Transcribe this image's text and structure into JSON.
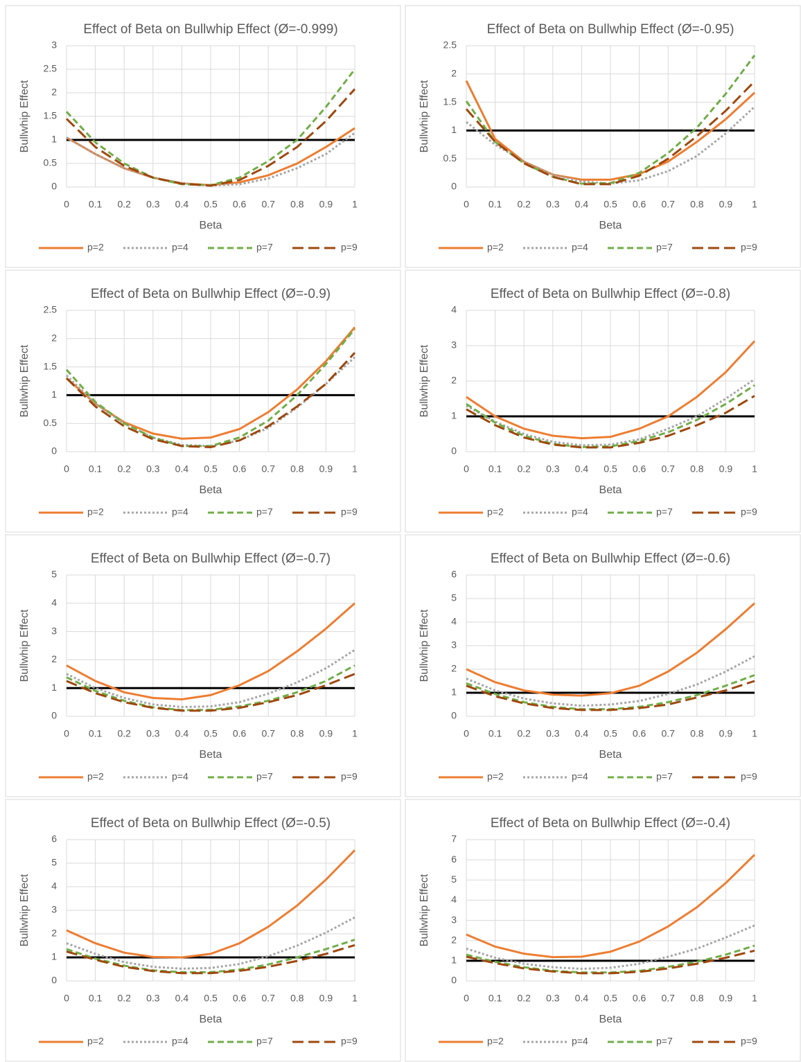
{
  "chart_data": [
    {
      "type": "line",
      "title": "Effect of Beta on Bullwhip Effect (Ø=-0.999)",
      "x_label": "Beta",
      "y_label": "Bullwhip Effect",
      "x": [
        0,
        0.1,
        0.2,
        0.3,
        0.4,
        0.5,
        0.6,
        0.7,
        0.8,
        0.9,
        1
      ],
      "xlim": [
        0,
        1
      ],
      "xticks": [
        0,
        0.1,
        0.2,
        0.3,
        0.4,
        0.5,
        0.6,
        0.7,
        0.8,
        0.9,
        1
      ],
      "ylim": [
        0,
        3
      ],
      "yticks": [
        0,
        0.5,
        1,
        1.5,
        2,
        2.5,
        3
      ],
      "grid": true,
      "legend": "bottom",
      "reference_line": 1,
      "reference_color": "#000000",
      "series": [
        {
          "name": "p=2",
          "color": "#ed7d31",
          "dash": "solid",
          "values": [
            1.05,
            0.7,
            0.4,
            0.2,
            0.08,
            0.04,
            0.1,
            0.25,
            0.5,
            0.85,
            1.25
          ]
        },
        {
          "name": "p=4",
          "color": "#a5a5a5",
          "dash": "dot",
          "values": [
            1.05,
            0.7,
            0.4,
            0.2,
            0.08,
            0.03,
            0.06,
            0.18,
            0.4,
            0.7,
            1.15
          ]
        },
        {
          "name": "p=7",
          "color": "#70ad47",
          "dash": "dash",
          "values": [
            1.6,
            0.95,
            0.5,
            0.2,
            0.06,
            0.04,
            0.2,
            0.55,
            1.0,
            1.7,
            2.5
          ]
        },
        {
          "name": "p=9",
          "color": "#9e480e",
          "dash": "longdash",
          "values": [
            1.45,
            0.85,
            0.45,
            0.2,
            0.07,
            0.03,
            0.15,
            0.45,
            0.85,
            1.4,
            2.08
          ]
        }
      ]
    },
    {
      "type": "line",
      "title": "Effect of Beta on Bullwhip Effect (Ø=-0.95)",
      "x_label": "Beta",
      "y_label": "Bullwhip Effect",
      "x": [
        0,
        0.1,
        0.2,
        0.3,
        0.4,
        0.5,
        0.6,
        0.7,
        0.8,
        0.9,
        1
      ],
      "xlim": [
        0,
        1
      ],
      "xticks": [
        0,
        0.1,
        0.2,
        0.3,
        0.4,
        0.5,
        0.6,
        0.7,
        0.8,
        0.9,
        1
      ],
      "ylim": [
        0,
        2.5
      ],
      "yticks": [
        0,
        0.5,
        1,
        1.5,
        2,
        2.5
      ],
      "grid": true,
      "legend": "bottom",
      "reference_line": 1,
      "reference_color": "#000000",
      "series": [
        {
          "name": "p=2",
          "color": "#ed7d31",
          "dash": "solid",
          "values": [
            1.88,
            0.85,
            0.45,
            0.22,
            0.13,
            0.13,
            0.23,
            0.45,
            0.8,
            1.2,
            1.67
          ]
        },
        {
          "name": "p=4",
          "color": "#a5a5a5",
          "dash": "dot",
          "values": [
            1.15,
            0.75,
            0.45,
            0.22,
            0.1,
            0.06,
            0.12,
            0.28,
            0.55,
            0.95,
            1.42
          ]
        },
        {
          "name": "p=7",
          "color": "#70ad47",
          "dash": "dash",
          "values": [
            1.52,
            0.8,
            0.42,
            0.18,
            0.06,
            0.07,
            0.25,
            0.6,
            1.05,
            1.65,
            2.33
          ]
        },
        {
          "name": "p=9",
          "color": "#9e480e",
          "dash": "longdash",
          "values": [
            1.38,
            0.8,
            0.42,
            0.18,
            0.05,
            0.05,
            0.2,
            0.5,
            0.9,
            1.35,
            1.87
          ]
        }
      ]
    },
    {
      "type": "line",
      "title": "Effect of Beta on Bullwhip Effect (Ø=-0.9)",
      "x_label": "Beta",
      "y_label": "Bullwhip Effect",
      "x": [
        0,
        0.1,
        0.2,
        0.3,
        0.4,
        0.5,
        0.6,
        0.7,
        0.8,
        0.9,
        1
      ],
      "xlim": [
        0,
        1
      ],
      "xticks": [
        0,
        0.1,
        0.2,
        0.3,
        0.4,
        0.5,
        0.6,
        0.7,
        0.8,
        0.9,
        1
      ],
      "ylim": [
        0,
        2.5
      ],
      "yticks": [
        0,
        0.5,
        1,
        1.5,
        2,
        2.5
      ],
      "grid": true,
      "legend": "bottom",
      "reference_line": 1,
      "reference_color": "#000000",
      "series": [
        {
          "name": "p=2",
          "color": "#ed7d31",
          "dash": "solid",
          "values": [
            1.3,
            0.85,
            0.52,
            0.32,
            0.23,
            0.25,
            0.4,
            0.7,
            1.1,
            1.6,
            2.2
          ]
        },
        {
          "name": "p=4",
          "color": "#a5a5a5",
          "dash": "dot",
          "values": [
            1.35,
            0.85,
            0.5,
            0.25,
            0.12,
            0.1,
            0.2,
            0.42,
            0.78,
            1.2,
            1.67
          ]
        },
        {
          "name": "p=7",
          "color": "#70ad47",
          "dash": "dash",
          "values": [
            1.45,
            0.88,
            0.5,
            0.25,
            0.1,
            0.1,
            0.25,
            0.55,
            1.0,
            1.55,
            2.17
          ]
        },
        {
          "name": "p=9",
          "color": "#9e480e",
          "dash": "longdash",
          "values": [
            1.3,
            0.8,
            0.45,
            0.22,
            0.1,
            0.08,
            0.2,
            0.45,
            0.8,
            1.2,
            1.75
          ]
        }
      ]
    },
    {
      "type": "line",
      "title": "Effect of Beta on Bullwhip Effect (Ø=-0.8)",
      "x_label": "Beta",
      "y_label": "Bullwhip Effect",
      "x": [
        0,
        0.1,
        0.2,
        0.3,
        0.4,
        0.5,
        0.6,
        0.7,
        0.8,
        0.9,
        1
      ],
      "xlim": [
        0,
        1
      ],
      "xticks": [
        0,
        0.1,
        0.2,
        0.3,
        0.4,
        0.5,
        0.6,
        0.7,
        0.8,
        0.9,
        1
      ],
      "ylim": [
        0,
        4
      ],
      "yticks": [
        0,
        1,
        2,
        3,
        4
      ],
      "grid": true,
      "legend": "bottom",
      "reference_line": 1,
      "reference_color": "#000000",
      "series": [
        {
          "name": "p=2",
          "color": "#ed7d31",
          "dash": "solid",
          "values": [
            1.55,
            1.0,
            0.65,
            0.45,
            0.38,
            0.42,
            0.65,
            1.0,
            1.55,
            2.25,
            3.13
          ]
        },
        {
          "name": "p=4",
          "color": "#a5a5a5",
          "dash": "dot",
          "values": [
            1.3,
            0.85,
            0.5,
            0.28,
            0.18,
            0.2,
            0.35,
            0.65,
            1.0,
            1.5,
            2.05
          ]
        },
        {
          "name": "p=7",
          "color": "#70ad47",
          "dash": "dash",
          "values": [
            1.35,
            0.82,
            0.45,
            0.22,
            0.13,
            0.15,
            0.3,
            0.55,
            0.9,
            1.35,
            1.88
          ]
        },
        {
          "name": "p=9",
          "color": "#9e480e",
          "dash": "longdash",
          "values": [
            1.2,
            0.75,
            0.4,
            0.2,
            0.12,
            0.12,
            0.25,
            0.45,
            0.75,
            1.1,
            1.58
          ]
        }
      ]
    },
    {
      "type": "line",
      "title": "Effect of Beta on Bullwhip Effect (Ø=-0.7)",
      "x_label": "Beta",
      "y_label": "Bullwhip Effect",
      "x": [
        0,
        0.1,
        0.2,
        0.3,
        0.4,
        0.5,
        0.6,
        0.7,
        0.8,
        0.9,
        1
      ],
      "xlim": [
        0,
        1
      ],
      "xticks": [
        0,
        0.1,
        0.2,
        0.3,
        0.4,
        0.5,
        0.6,
        0.7,
        0.8,
        0.9,
        1
      ],
      "ylim": [
        0,
        5
      ],
      "yticks": [
        0,
        1,
        2,
        3,
        4,
        5
      ],
      "grid": true,
      "legend": "bottom",
      "reference_line": 1,
      "reference_color": "#000000",
      "series": [
        {
          "name": "p=2",
          "color": "#ed7d31",
          "dash": "solid",
          "values": [
            1.8,
            1.25,
            0.85,
            0.65,
            0.6,
            0.75,
            1.1,
            1.6,
            2.3,
            3.1,
            4.0
          ]
        },
        {
          "name": "p=4",
          "color": "#a5a5a5",
          "dash": "dot",
          "values": [
            1.5,
            1.0,
            0.65,
            0.42,
            0.33,
            0.35,
            0.5,
            0.8,
            1.2,
            1.7,
            2.35
          ]
        },
        {
          "name": "p=7",
          "color": "#70ad47",
          "dash": "dash",
          "values": [
            1.38,
            0.9,
            0.55,
            0.32,
            0.22,
            0.23,
            0.35,
            0.55,
            0.85,
            1.25,
            1.8
          ]
        },
        {
          "name": "p=9",
          "color": "#9e480e",
          "dash": "longdash",
          "values": [
            1.25,
            0.82,
            0.5,
            0.3,
            0.2,
            0.2,
            0.3,
            0.5,
            0.75,
            1.1,
            1.5
          ]
        }
      ]
    },
    {
      "type": "line",
      "title": "Effect of Beta on Bullwhip Effect (Ø=-0.6)",
      "x_label": "Beta",
      "y_label": "Bullwhip Effect",
      "x": [
        0,
        0.1,
        0.2,
        0.3,
        0.4,
        0.5,
        0.6,
        0.7,
        0.8,
        0.9,
        1
      ],
      "xlim": [
        0,
        1
      ],
      "xticks": [
        0,
        0.1,
        0.2,
        0.3,
        0.4,
        0.5,
        0.6,
        0.7,
        0.8,
        0.9,
        1
      ],
      "ylim": [
        0,
        6
      ],
      "yticks": [
        0,
        1,
        2,
        3,
        4,
        5,
        6
      ],
      "grid": true,
      "legend": "bottom",
      "reference_line": 1,
      "reference_color": "#000000",
      "series": [
        {
          "name": "p=2",
          "color": "#ed7d31",
          "dash": "solid",
          "values": [
            2.0,
            1.45,
            1.1,
            0.92,
            0.88,
            0.98,
            1.3,
            1.9,
            2.7,
            3.7,
            4.8
          ]
        },
        {
          "name": "p=4",
          "color": "#a5a5a5",
          "dash": "dot",
          "values": [
            1.6,
            1.1,
            0.75,
            0.55,
            0.45,
            0.5,
            0.65,
            0.95,
            1.35,
            1.9,
            2.55
          ]
        },
        {
          "name": "p=7",
          "color": "#70ad47",
          "dash": "dash",
          "values": [
            1.4,
            0.95,
            0.6,
            0.4,
            0.3,
            0.3,
            0.4,
            0.6,
            0.9,
            1.3,
            1.75
          ]
        },
        {
          "name": "p=9",
          "color": "#9e480e",
          "dash": "longdash",
          "values": [
            1.3,
            0.85,
            0.55,
            0.35,
            0.27,
            0.27,
            0.35,
            0.5,
            0.8,
            1.1,
            1.5
          ]
        }
      ]
    },
    {
      "type": "line",
      "title": "Effect of Beta on Bullwhip Effect (Ø=-0.5)",
      "x_label": "Beta",
      "y_label": "Bullwhip Effect",
      "x": [
        0,
        0.1,
        0.2,
        0.3,
        0.4,
        0.5,
        0.6,
        0.7,
        0.8,
        0.9,
        1
      ],
      "xlim": [
        0,
        1
      ],
      "xticks": [
        0,
        0.1,
        0.2,
        0.3,
        0.4,
        0.5,
        0.6,
        0.7,
        0.8,
        0.9,
        1
      ],
      "ylim": [
        0,
        6
      ],
      "yticks": [
        0,
        1,
        2,
        3,
        4,
        5,
        6
      ],
      "grid": true,
      "legend": "bottom",
      "reference_line": 1,
      "reference_color": "#000000",
      "series": [
        {
          "name": "p=2",
          "color": "#ed7d31",
          "dash": "solid",
          "values": [
            2.15,
            1.6,
            1.2,
            1.02,
            1.0,
            1.15,
            1.6,
            2.3,
            3.2,
            4.3,
            5.55
          ]
        },
        {
          "name": "p=4",
          "color": "#a5a5a5",
          "dash": "dot",
          "values": [
            1.6,
            1.15,
            0.8,
            0.6,
            0.52,
            0.55,
            0.72,
            1.05,
            1.5,
            2.05,
            2.7
          ]
        },
        {
          "name": "p=7",
          "color": "#70ad47",
          "dash": "dash",
          "values": [
            1.35,
            0.95,
            0.65,
            0.45,
            0.37,
            0.37,
            0.48,
            0.7,
            1.0,
            1.35,
            1.75
          ]
        },
        {
          "name": "p=9",
          "color": "#9e480e",
          "dash": "longdash",
          "values": [
            1.25,
            0.9,
            0.6,
            0.42,
            0.33,
            0.33,
            0.43,
            0.6,
            0.85,
            1.15,
            1.52
          ]
        }
      ]
    },
    {
      "type": "line",
      "title": "Effect of Beta on Bullwhip Effect (Ø=-0.4)",
      "x_label": "Beta",
      "y_label": "Bullwhip Effect",
      "x": [
        0,
        0.1,
        0.2,
        0.3,
        0.4,
        0.5,
        0.6,
        0.7,
        0.8,
        0.9,
        1
      ],
      "xlim": [
        0,
        1
      ],
      "xticks": [
        0,
        0.1,
        0.2,
        0.3,
        0.4,
        0.5,
        0.6,
        0.7,
        0.8,
        0.9,
        1
      ],
      "ylim": [
        0,
        7
      ],
      "yticks": [
        0,
        1,
        2,
        3,
        4,
        5,
        6,
        7
      ],
      "grid": true,
      "legend": "bottom",
      "reference_line": 1,
      "reference_color": "#000000",
      "series": [
        {
          "name": "p=2",
          "color": "#ed7d31",
          "dash": "solid",
          "values": [
            2.3,
            1.7,
            1.35,
            1.18,
            1.2,
            1.45,
            1.95,
            2.7,
            3.65,
            4.85,
            6.25
          ]
        },
        {
          "name": "p=4",
          "color": "#a5a5a5",
          "dash": "dot",
          "values": [
            1.6,
            1.15,
            0.85,
            0.68,
            0.6,
            0.65,
            0.85,
            1.2,
            1.6,
            2.15,
            2.75
          ]
        },
        {
          "name": "p=7",
          "color": "#70ad47",
          "dash": "dash",
          "values": [
            1.3,
            0.95,
            0.68,
            0.5,
            0.42,
            0.42,
            0.5,
            0.7,
            0.95,
            1.3,
            1.75
          ]
        },
        {
          "name": "p=9",
          "color": "#9e480e",
          "dash": "longdash",
          "values": [
            1.2,
            0.88,
            0.62,
            0.47,
            0.38,
            0.38,
            0.45,
            0.62,
            0.85,
            1.15,
            1.5
          ]
        }
      ]
    }
  ]
}
